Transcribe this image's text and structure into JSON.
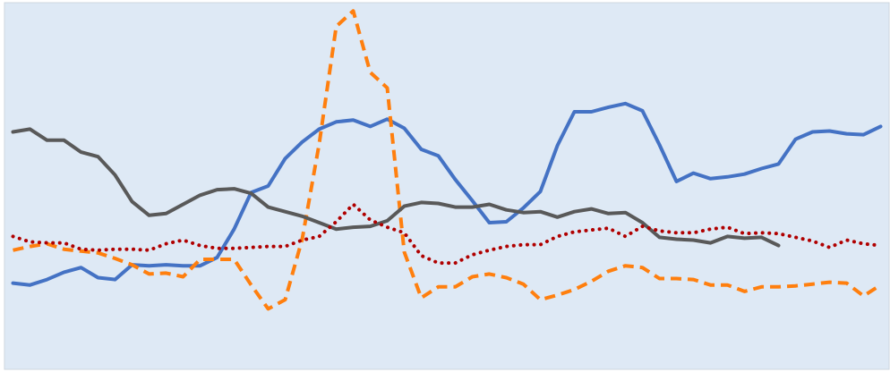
{
  "chart_data": {
    "type": "line",
    "title": "",
    "xlabel": "",
    "ylabel": "",
    "grid": false,
    "legend": "none",
    "x": [
      0,
      1,
      2,
      3,
      4,
      5,
      6,
      7,
      8,
      9,
      10,
      11,
      12,
      13,
      14,
      15,
      16,
      17,
      18,
      19,
      20,
      21,
      22,
      23,
      24,
      25,
      26,
      27,
      28,
      29,
      30,
      31,
      32,
      33,
      34,
      35,
      36,
      37,
      38,
      39,
      40,
      41,
      42,
      43,
      44,
      45,
      46,
      47,
      48,
      49,
      50,
      51
    ],
    "xlim": [
      -0.5,
      51.5
    ],
    "ylim": [
      0,
      400
    ],
    "colors": {
      "background": "#dee9f5",
      "border": "#cdd6df",
      "blue": "#4472c4",
      "orange": "#ff7f0e",
      "gray": "#595959",
      "red": "#b00000"
    },
    "series": [
      {
        "color": "#4472c4",
        "style": "solid",
        "values": [
          94,
          92,
          98,
          106,
          111,
          100,
          98,
          114,
          113,
          114,
          113,
          113,
          122,
          153,
          193,
          200,
          230,
          248,
          262,
          270,
          272,
          265,
          273,
          263,
          240,
          233,
          207,
          184,
          160,
          161,
          176,
          194,
          244,
          281,
          281,
          286,
          290,
          282,
          245,
          205,
          214,
          208,
          210,
          213,
          219,
          224,
          251,
          259,
          260,
          257,
          256,
          265
        ]
      },
      {
        "color": "#ff7f0e",
        "style": "dashed",
        "values": [
          130,
          134,
          137,
          131,
          129,
          127,
          121,
          114,
          104,
          105,
          101,
          120,
          120,
          120,
          92,
          66,
          76,
          142,
          246,
          374,
          391,
          324,
          307,
          128,
          78,
          90,
          90,
          101,
          104,
          100,
          93,
          76,
          81,
          87,
          96,
          107,
          113,
          111,
          99,
          99,
          98,
          92,
          92,
          85,
          90,
          90,
          91,
          93,
          95,
          94,
          80,
          92
        ]
      },
      {
        "color": "#595959",
        "style": "solid",
        "values": [
          259,
          262,
          250,
          250,
          237,
          232,
          212,
          183,
          168,
          170,
          180,
          190,
          196,
          197,
          192,
          177,
          172,
          167,
          160,
          153,
          155,
          156,
          162,
          178,
          182,
          181,
          177,
          177,
          180,
          174,
          171,
          172,
          166,
          172,
          175,
          170,
          171,
          160,
          144,
          142,
          141,
          138,
          145,
          143,
          144,
          135,
          null,
          null,
          null,
          null,
          null,
          null
        ]
      },
      {
        "color": "#b00000",
        "style": "dotted",
        "values": [
          145,
          139,
          138,
          138,
          131,
          130,
          131,
          131,
          130,
          137,
          141,
          135,
          132,
          132,
          133,
          134,
          134,
          141,
          145,
          161,
          180,
          163,
          155,
          149,
          124,
          116,
          116,
          125,
          130,
          134,
          136,
          136,
          145,
          150,
          152,
          154,
          145,
          156,
          151,
          149,
          149,
          153,
          155,
          148,
          149,
          148,
          144,
          140,
          133,
          141,
          137,
          135
        ]
      }
    ]
  }
}
